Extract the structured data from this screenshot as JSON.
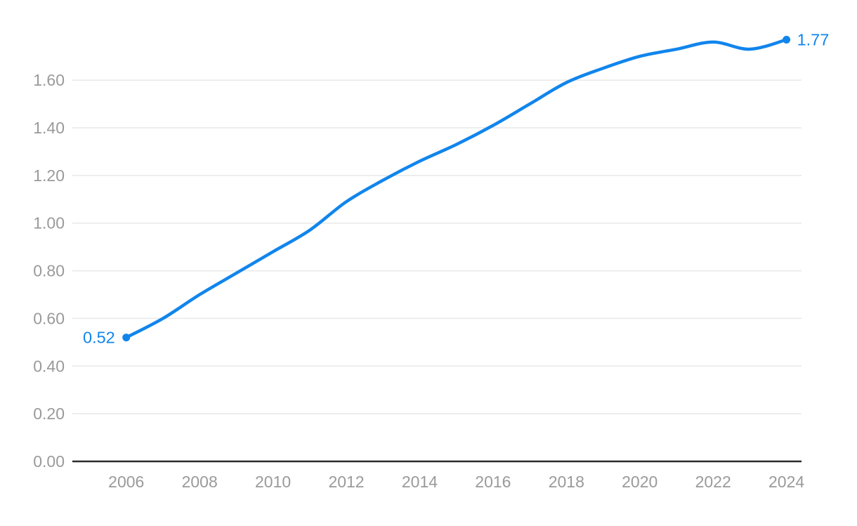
{
  "chart_data": {
    "type": "line",
    "title": "",
    "xlabel": "",
    "ylabel": "",
    "x": [
      2006,
      2007,
      2008,
      2009,
      2010,
      2011,
      2012,
      2013,
      2014,
      2015,
      2016,
      2017,
      2018,
      2019,
      2020,
      2021,
      2022,
      2023,
      2024
    ],
    "series": [
      {
        "name": "value",
        "values": [
          0.52,
          0.6,
          0.7,
          0.79,
          0.88,
          0.97,
          1.09,
          1.18,
          1.26,
          1.33,
          1.41,
          1.5,
          1.59,
          1.65,
          1.7,
          1.73,
          1.76,
          1.73,
          1.77
        ]
      }
    ],
    "x_ticks": [
      2006,
      2008,
      2010,
      2012,
      2014,
      2016,
      2018,
      2020,
      2022,
      2024
    ],
    "x_tick_labels": [
      "2006",
      "2008",
      "2010",
      "2012",
      "2014",
      "2016",
      "2018",
      "2020",
      "2022",
      "2024"
    ],
    "y_ticks": [
      0.0,
      0.2,
      0.4,
      0.6,
      0.8,
      1.0,
      1.2,
      1.4,
      1.6
    ],
    "y_tick_labels": [
      "0.00",
      "0.20",
      "0.40",
      "0.60",
      "0.80",
      "1.00",
      "1.20",
      "1.40",
      "1.60"
    ],
    "ylim": [
      0,
      1.8
    ],
    "xlim": [
      2004.53,
      2024.41
    ],
    "grid": true,
    "legend": false,
    "annotations": {
      "first_point_label": "0.52",
      "last_point_label": "1.77"
    },
    "colors": {
      "line": "#1185ec",
      "marker": "#1185ec",
      "point_label": "#1185ec",
      "grid": "#e8e8e8",
      "axis": "#2b2b2b",
      "tick_label": "#9a9a9a"
    }
  }
}
